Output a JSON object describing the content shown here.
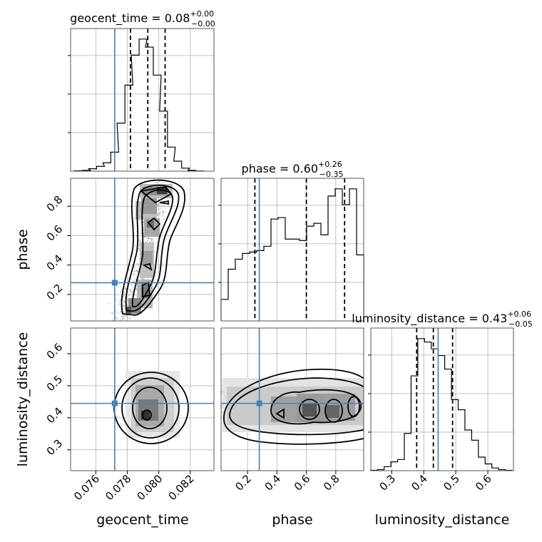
{
  "chart_data": {
    "type": "corner",
    "parameters": [
      "geocent_time",
      "phase",
      "luminosity_distance"
    ],
    "titles": [
      {
        "name": "geocent_time",
        "median": "0.08",
        "plus": "+0.00",
        "minus": "−0.00"
      },
      {
        "name": "phase",
        "median": "0.60",
        "plus": "+0.26",
        "minus": "−0.35"
      },
      {
        "name": "luminosity_distance",
        "median": "0.43",
        "plus": "+0.06",
        "minus": "−0.05"
      }
    ],
    "ranges": [
      [
        0.0744,
        0.0835
      ],
      [
        0.02,
        0.99
      ],
      [
        0.235,
        0.68
      ]
    ],
    "ticks": [
      {
        "values": [
          0.076,
          0.078,
          0.08,
          0.082
        ],
        "labels": [
          "0.076",
          "0.078",
          "0.080",
          "0.082"
        ]
      },
      {
        "values": [
          0.2,
          0.4,
          0.6,
          0.8
        ],
        "labels": [
          "0.2",
          "0.4",
          "0.6",
          "0.8"
        ]
      },
      {
        "values": [
          0.3,
          0.4,
          0.5,
          0.6
        ],
        "labels": [
          "0.3",
          "0.4",
          "0.5",
          "0.6"
        ]
      }
    ],
    "truths": [
      0.0772,
      0.28,
      0.445
    ],
    "quantiles": [
      [
        0.0782,
        0.0793,
        0.0804
      ],
      [
        0.25,
        0.6,
        0.86
      ],
      [
        0.378,
        0.43,
        0.49
      ]
    ],
    "histograms": [
      {
        "x": [
          0.0749,
          0.0754,
          0.0758,
          0.0763,
          0.0767,
          0.0772,
          0.0776,
          0.0781,
          0.0785,
          0.079,
          0.0794,
          0.0799,
          0.0803,
          0.0808,
          0.0812,
          0.0817,
          0.0821,
          0.0826
        ],
        "values": [
          0.2,
          0.4,
          1.2,
          2.4,
          4.2,
          9.5,
          24,
          43,
          58,
          66,
          62,
          48,
          30,
          12,
          5,
          1.5,
          0.4,
          0.1
        ]
      },
      {
        "x": [
          0.044,
          0.093,
          0.141,
          0.19,
          0.238,
          0.287,
          0.335,
          0.384,
          0.432,
          0.481,
          0.529,
          0.578,
          0.626,
          0.675,
          0.723,
          0.772,
          0.82,
          0.869,
          0.917,
          0.966
        ],
        "values": [
          1.5,
          3.6,
          4.3,
          4.7,
          4.8,
          4.9,
          5.2,
          7.1,
          7.2,
          5.7,
          5.7,
          5.6,
          6.6,
          6.8,
          6.0,
          8.7,
          9.2,
          8.1,
          9.2,
          4.6
        ]
      },
      {
        "x": [
          0.245,
          0.266,
          0.287,
          0.308,
          0.329,
          0.35,
          0.371,
          0.392,
          0.413,
          0.434,
          0.455,
          0.476,
          0.497,
          0.518,
          0.539,
          0.56,
          0.581,
          0.602,
          0.623,
          0.644,
          0.665
        ],
        "values": [
          0.1,
          0.3,
          1.2,
          2.6,
          3.3,
          11,
          28,
          39,
          38,
          36,
          34,
          30,
          21,
          18,
          12,
          9,
          4,
          2,
          0.8,
          0.3,
          0.1
        ]
      }
    ],
    "grid": true
  }
}
